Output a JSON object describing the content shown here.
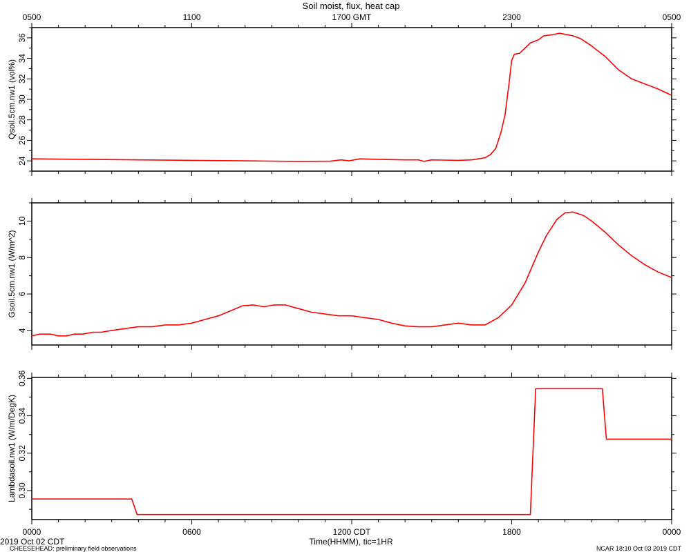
{
  "header": {
    "title": "Soil moist, flux, heat cap"
  },
  "footer": {
    "xlabel": "Time(HHMM), tic=1HR",
    "date_left": "2019 Oct 02 CDT",
    "project": "CHEESEHEAD: preliminary field observations",
    "credit": "NCAR 18:10 Oct 03 2019 CDT"
  },
  "colors": {
    "series": "#ff0000",
    "axis": "#000000",
    "background": "#ffffff"
  },
  "chart_data": [
    {
      "type": "line",
      "ylabel": "Qsoil.5cm.nw1 (vol%)",
      "xlabel": "",
      "xlim": [
        0,
        24
      ],
      "ylim": [
        23,
        37
      ],
      "yticks": [
        24,
        26,
        28,
        30,
        32,
        34,
        36
      ],
      "x_top_ticks": [
        {
          "x": 0,
          "label": "0500"
        },
        {
          "x": 6,
          "label": "1100"
        },
        {
          "x": 12,
          "label": "1700 GMT"
        },
        {
          "x": 18,
          "label": "2300"
        },
        {
          "x": 24,
          "label": "0500"
        }
      ],
      "grid": false,
      "series": [
        {
          "x": [
            0,
            2,
            4,
            6,
            8,
            10,
            11.2,
            11.6,
            11.9,
            12.3,
            13,
            14,
            14.5,
            14.7,
            15,
            16,
            16.5,
            17,
            17.2,
            17.4,
            17.6,
            17.75,
            17.9,
            18,
            18.1,
            18.3,
            18.7,
            19,
            19.2,
            19.5,
            19.8,
            20,
            20.3,
            20.6,
            21,
            21.5,
            22,
            22.5,
            23,
            23.5,
            24
          ],
          "y": [
            24.2,
            24.15,
            24.1,
            24.05,
            24.0,
            23.95,
            23.97,
            24.1,
            24.0,
            24.2,
            24.15,
            24.1,
            24.1,
            23.95,
            24.1,
            24.05,
            24.1,
            24.3,
            24.6,
            25.2,
            26.8,
            28.5,
            31.5,
            33.8,
            34.4,
            34.5,
            35.5,
            35.8,
            36.2,
            36.3,
            36.45,
            36.35,
            36.2,
            35.9,
            35.2,
            34.2,
            32.9,
            32.0,
            31.5,
            31.0,
            30.4
          ]
        }
      ]
    },
    {
      "type": "line",
      "ylabel": "Gsoil.5cm.nw1 (W/m^2)",
      "xlabel": "",
      "xlim": [
        0,
        24
      ],
      "ylim": [
        3.2,
        11.0
      ],
      "yticks": [
        4,
        6,
        8,
        10
      ],
      "grid": false,
      "series": [
        {
          "x": [
            0,
            0.3,
            0.7,
            1,
            1.3,
            1.6,
            1.9,
            2.3,
            2.6,
            3,
            3.5,
            4,
            4.5,
            5,
            5.5,
            6,
            6.5,
            7,
            7.5,
            7.9,
            8.3,
            8.7,
            9.1,
            9.5,
            10,
            10.5,
            11,
            11.5,
            12,
            12.5,
            13,
            13.5,
            14,
            14.5,
            15,
            15.5,
            16,
            16.5,
            17,
            17.5,
            18,
            18.5,
            19,
            19.3,
            19.7,
            20,
            20.3,
            20.7,
            21,
            21.5,
            22,
            22.5,
            23,
            23.5,
            24
          ],
          "y": [
            3.7,
            3.8,
            3.8,
            3.7,
            3.7,
            3.8,
            3.8,
            3.9,
            3.9,
            4.0,
            4.1,
            4.2,
            4.2,
            4.3,
            4.3,
            4.4,
            4.6,
            4.8,
            5.1,
            5.35,
            5.4,
            5.3,
            5.4,
            5.4,
            5.2,
            5.0,
            4.9,
            4.8,
            4.8,
            4.7,
            4.6,
            4.4,
            4.25,
            4.2,
            4.2,
            4.3,
            4.4,
            4.3,
            4.3,
            4.7,
            5.4,
            6.6,
            8.3,
            9.2,
            10.1,
            10.45,
            10.5,
            10.3,
            10.0,
            9.4,
            8.7,
            8.1,
            7.6,
            7.2,
            6.9
          ]
        }
      ]
    },
    {
      "type": "line",
      "ylabel": "Lambdasoil.nw1 (W/m/DegK)",
      "xlabel": "Time(HHMM), tic=1HR",
      "xlim": [
        0,
        24
      ],
      "ylim": [
        0.2845,
        0.3605
      ],
      "yticks": [
        0.3,
        0.32,
        0.34,
        0.36
      ],
      "ytick_labels": [
        "0.30",
        "0.32",
        "0.34",
        "0.36"
      ],
      "x_bottom_ticks": [
        {
          "x": 0,
          "label": "0000"
        },
        {
          "x": 6,
          "label": "0600"
        },
        {
          "x": 12,
          "label": "1200 CDT"
        },
        {
          "x": 18,
          "label": "1800"
        },
        {
          "x": 24,
          "label": "0000"
        }
      ],
      "grid": false,
      "series": [
        {
          "x": [
            0,
            3.75,
            3.95,
            18.7,
            18.9,
            21.4,
            21.55,
            24
          ],
          "y": [
            0.2955,
            0.2955,
            0.2872,
            0.2872,
            0.3545,
            0.3545,
            0.3275,
            0.3275
          ]
        }
      ]
    }
  ]
}
